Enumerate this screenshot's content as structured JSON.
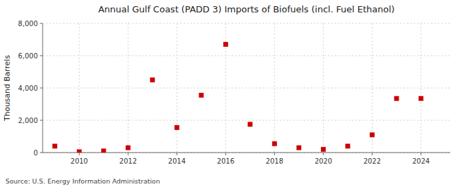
{
  "chart_data": {
    "type": "scatter",
    "title": "Annual Gulf Coast (PADD 3) Imports of Biofuels (incl. Fuel Ethanol)",
    "y_label": "Thousand Barrels",
    "source": "Source: U.S. Energy Information Administration",
    "x": [
      2009,
      2010,
      2011,
      2012,
      2013,
      2014,
      2015,
      2016,
      2017,
      2018,
      2019,
      2020,
      2021,
      2022,
      2023,
      2024
    ],
    "values": [
      400,
      50,
      100,
      300,
      4500,
      1550,
      3550,
      6700,
      1750,
      550,
      300,
      200,
      400,
      1100,
      3350,
      3350
    ],
    "color": "#cc0000",
    "marker": "square",
    "xlim": [
      2008.5,
      2025.2
    ],
    "xticks": [
      2010,
      2012,
      2014,
      2016,
      2018,
      2020,
      2022,
      2024
    ],
    "ylim": [
      0,
      8000
    ],
    "yticks": [
      0,
      {
        "value": 2000,
        "label": "2,000"
      },
      {
        "value": 4000,
        "label": "4,000"
      },
      {
        "value": 6000,
        "label": "6,000"
      },
      {
        "value": 8000,
        "label": "8,000"
      }
    ],
    "grid": true
  }
}
